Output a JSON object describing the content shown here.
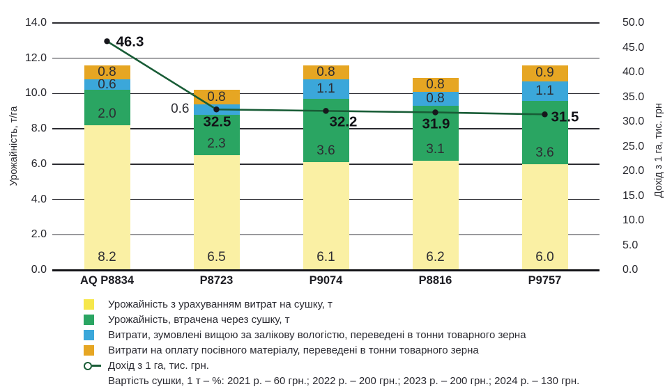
{
  "chart_data": {
    "type": "bar",
    "stacked": true,
    "grid": true,
    "legend_position": "bottom-left",
    "categories": [
      "AQ P8834",
      "P8723",
      "P9074",
      "P8816",
      "P9757"
    ],
    "series": [
      {
        "name": "Урожайність з урахуванням витрат на сушку, т",
        "color": "#F6E74B",
        "bar_fill": "#FAF0A4",
        "values": [
          8.2,
          6.5,
          6.1,
          6.2,
          6.0
        ]
      },
      {
        "name": "Урожайність, втрачена через сушку, т",
        "color": "#2AA562",
        "values": [
          2.0,
          2.3,
          3.6,
          3.1,
          3.6
        ]
      },
      {
        "name": "Витрати, зумовлені вищою за залікову вологістю, переведені в тонни товарного зерна",
        "color": "#3BA7DA",
        "values": [
          0.6,
          0.6,
          1.1,
          0.8,
          1.1
        ]
      },
      {
        "name": "Витрати на оплату посівного матеріалу, переведені в тонни товарного зерна",
        "color": "#E6A623",
        "values": [
          0.8,
          0.8,
          0.8,
          0.8,
          0.9
        ]
      }
    ],
    "line_series": {
      "name": "Дохід з 1 га, тис. грн.",
      "color": "#185C36",
      "marker_color": "#17171C",
      "axis": "right",
      "values": [
        46.3,
        32.5,
        32.2,
        31.9,
        31.5
      ]
    },
    "left_axis": {
      "label": "Урожайність, т/га",
      "min": 0,
      "max": 14,
      "step": 2,
      "ticks": [
        "0.0",
        "2.0",
        "4.0",
        "6.0",
        "8.0",
        "10.0",
        "12.0",
        "14.0"
      ]
    },
    "right_axis": {
      "label": "Дохід з 1 га, тис. грн",
      "min": 0,
      "max": 50,
      "step": 5,
      "ticks": [
        "0.0",
        "5.0",
        "10.0",
        "15.0",
        "20.0",
        "25.0",
        "30.0",
        "35.0",
        "40.0",
        "45.0",
        "50.0"
      ]
    },
    "footnote": "Вартість сушки, 1 т – %: 2021 р. – 60 грн.; 2022 р. – 200 грн.; 2023 р. – 200 грн.; 2024 р. – 130 грн."
  }
}
